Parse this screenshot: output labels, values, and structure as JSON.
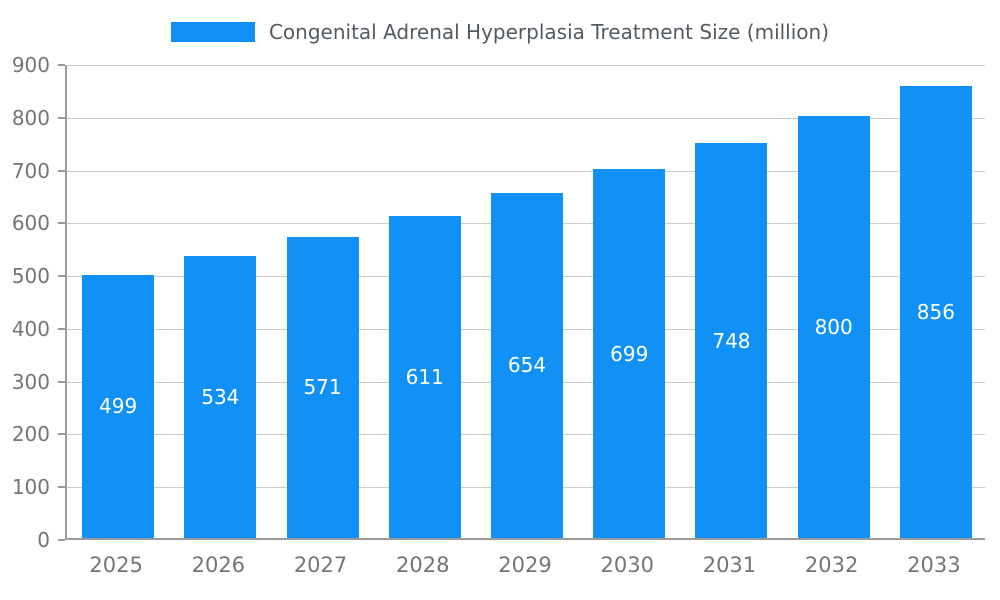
{
  "chart_data": {
    "type": "bar",
    "title": "Congenital Adrenal Hyperplasia Treatment Size (million)",
    "categories": [
      "2025",
      "2026",
      "2027",
      "2028",
      "2029",
      "2030",
      "2031",
      "2032",
      "2033"
    ],
    "values": [
      499,
      534,
      571,
      611,
      654,
      699,
      748,
      800,
      856
    ],
    "xlabel": "",
    "ylabel": "",
    "ylim": [
      0,
      900
    ],
    "ytick_step": 100,
    "grid": true,
    "legend_position": "top",
    "bar_color": "#1191f5",
    "value_label_color": "#ffffff"
  }
}
